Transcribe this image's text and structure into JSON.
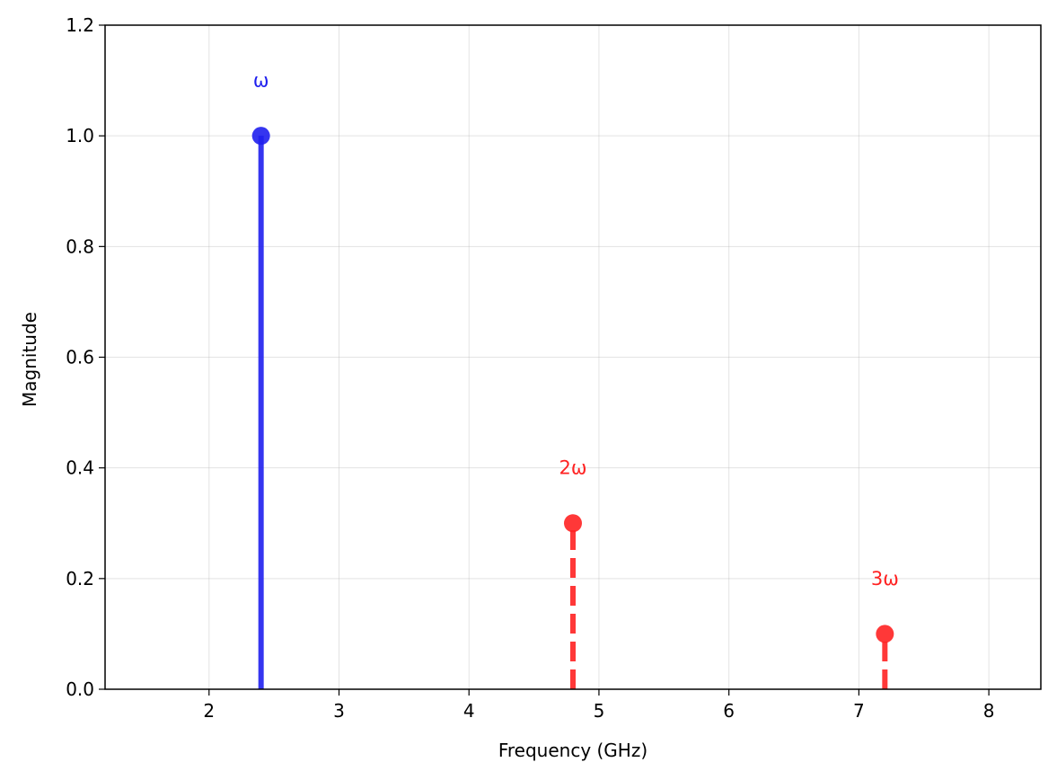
{
  "chart_data": {
    "type": "stem",
    "title": "",
    "xlabel": "Frequency (GHz)",
    "ylabel": "Magnitude",
    "xlim": [
      1.2,
      8.4
    ],
    "ylim": [
      0,
      1.2
    ],
    "grid": true,
    "xticks": [
      2,
      3,
      4,
      5,
      6,
      7,
      8
    ],
    "yticks": [
      0.0,
      0.2,
      0.4,
      0.6,
      0.8,
      1.0,
      1.2
    ],
    "points": [
      {
        "label": "ω",
        "x": 2.4,
        "y": 1.0,
        "color": "#1f1fee",
        "style": "solid"
      },
      {
        "label": "2ω",
        "x": 4.8,
        "y": 0.3,
        "color": "#ff2222",
        "style": "dashed"
      },
      {
        "label": "3ω",
        "x": 7.2,
        "y": 0.1,
        "color": "#ff2222",
        "style": "dashed"
      }
    ]
  }
}
